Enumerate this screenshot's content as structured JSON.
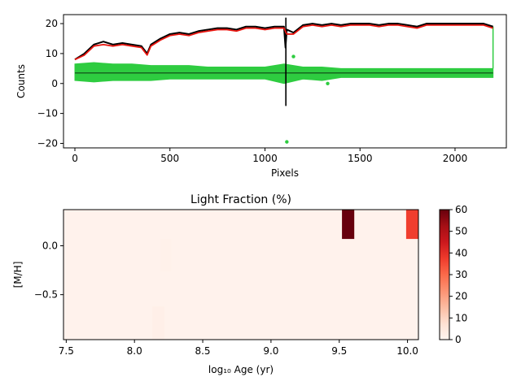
{
  "chart_data": [
    {
      "type": "line",
      "xlabel": "Pixels",
      "ylabel": "Counts",
      "xlim": [
        -60,
        2270
      ],
      "ylim": [
        -21.5,
        23
      ],
      "xticks": [
        0,
        500,
        1000,
        1500,
        2000
      ],
      "xtick_labels": [
        "0",
        "500",
        "1000",
        "1500",
        "2000"
      ],
      "yticks": [
        -20,
        -10,
        0,
        10,
        20
      ],
      "ytick_labels": [
        "−20",
        "−10",
        "0",
        "10",
        "20"
      ],
      "series": [
        {
          "color": "#000000",
          "x": [
            0,
            50,
            100,
            150,
            200,
            250,
            300,
            350,
            380,
            400,
            450,
            500,
            550,
            600,
            650,
            700,
            750,
            800,
            850,
            900,
            950,
            1000,
            1050,
            1100,
            1108,
            1115,
            1150,
            1200,
            1250,
            1300,
            1350,
            1400,
            1450,
            1500,
            1550,
            1600,
            1650,
            1700,
            1750,
            1800,
            1850,
            1900,
            1950,
            2000,
            2050,
            2100,
            2150,
            2200
          ],
          "y": [
            8,
            10,
            13,
            14,
            13,
            13.5,
            13,
            12.5,
            10,
            13,
            15,
            16.5,
            17,
            16.5,
            17.5,
            18,
            18.5,
            18.5,
            18,
            19,
            19,
            18.5,
            19,
            19,
            12,
            18,
            17,
            19.5,
            20,
            19.5,
            20,
            19.5,
            20,
            20,
            20,
            19.5,
            20,
            20,
            19.5,
            19,
            20,
            20,
            20,
            20,
            20,
            20,
            20,
            19
          ]
        },
        {
          "color": "#e8140e",
          "x": [
            0,
            50,
            100,
            150,
            200,
            250,
            300,
            350,
            380,
            400,
            450,
            500,
            550,
            600,
            650,
            700,
            750,
            800,
            850,
            900,
            950,
            1000,
            1050,
            1100,
            1115,
            1150,
            1200,
            1250,
            1300,
            1350,
            1400,
            1450,
            1500,
            1550,
            1600,
            1650,
            1700,
            1750,
            1800,
            1850,
            1900,
            1950,
            2000,
            2050,
            2100,
            2150,
            2200
          ],
          "y": [
            8,
            9.5,
            12.5,
            13,
            12.5,
            13,
            12.5,
            12,
            9.5,
            12.5,
            14.5,
            16,
            16.5,
            16,
            17,
            17.5,
            18,
            18,
            17.5,
            18.5,
            18.5,
            18,
            18.5,
            18.5,
            16.5,
            16.5,
            19,
            19.5,
            19,
            19.5,
            19,
            19.5,
            19.5,
            19.5,
            19,
            19.5,
            19.5,
            19,
            18.5,
            19.5,
            19.5,
            19.5,
            19.5,
            19.5,
            19.5,
            19.5,
            18.5
          ]
        },
        {
          "color": "#2ecc40",
          "x": [
            0,
            100,
            200,
            300,
            400,
            500,
            600,
            700,
            800,
            900,
            1000,
            1100,
            1200,
            1300,
            1400,
            1500,
            1600,
            1700,
            1800,
            1900,
            2000,
            2100,
            2200
          ],
          "y_low": [
            1,
            0.5,
            1,
            1,
            1,
            1.5,
            1.5,
            1.5,
            1.5,
            1.5,
            1.5,
            0,
            1.5,
            1,
            2,
            2,
            2,
            2,
            2,
            2,
            2,
            2,
            2
          ],
          "y_high": [
            6.5,
            7,
            6.5,
            6.5,
            6,
            6,
            6,
            5.5,
            5.5,
            5.5,
            5.5,
            6.5,
            5.5,
            5.5,
            5,
            5,
            5,
            5,
            5,
            5,
            5,
            5,
            5
          ]
        }
      ]
    },
    {
      "type": "heatmap",
      "title": "Light Fraction (%)",
      "xlabel": "log₁₀ Age (yr)",
      "ylabel": "[M/H]",
      "xlim": [
        7.48,
        10.08
      ],
      "ylim": [
        -0.96,
        0.37
      ],
      "xticks": [
        7.5,
        8.0,
        8.5,
        9.0,
        9.5,
        10.0
      ],
      "xtick_labels": [
        "7.5",
        "8.0",
        "8.5",
        "9.0",
        "9.5",
        "10.0"
      ],
      "yticks": [
        0.0,
        -0.5
      ],
      "ytick_labels": [
        "0.0",
        "−0.5"
      ],
      "colorbar": {
        "min": 0,
        "max": 60,
        "ticks": [
          0,
          10,
          20,
          30,
          40,
          50,
          60
        ],
        "tick_labels": [
          "0",
          "10",
          "20",
          "30",
          "40",
          "50",
          "60"
        ],
        "colormap": "Reds"
      },
      "background_value": 1,
      "cells": [
        {
          "x0": 9.52,
          "x1": 9.61,
          "y0": 0.07,
          "y1": 0.37,
          "value": 60
        },
        {
          "x0": 9.99,
          "x1": 10.08,
          "y0": 0.07,
          "y1": 0.37,
          "value": 37
        },
        {
          "x0": 8.13,
          "x1": 8.22,
          "y0": -0.96,
          "y1": -0.62,
          "value": 2
        },
        {
          "x0": 8.19,
          "x1": 8.27,
          "y0": -0.26,
          "y1": 0.07,
          "value": 1.5
        }
      ]
    }
  ]
}
